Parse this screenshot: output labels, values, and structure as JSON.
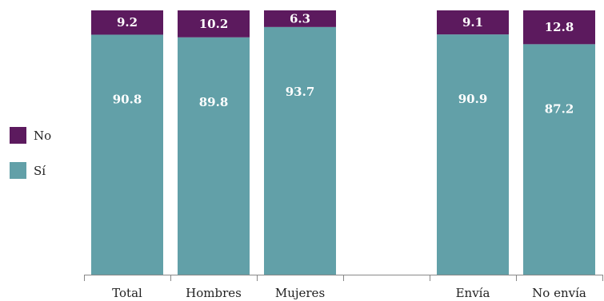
{
  "chart_data": {
    "type": "bar",
    "stacked": true,
    "categories": [
      "Total",
      "Hombres",
      "Mujeres",
      "",
      "Envía",
      "No envía"
    ],
    "series": [
      {
        "name": "Sí",
        "color": "#62A0A8",
        "values": [
          90.8,
          89.8,
          93.7,
          null,
          90.9,
          87.2
        ]
      },
      {
        "name": "No",
        "color": "#5C1A5E",
        "values": [
          9.2,
          10.2,
          6.3,
          null,
          9.1,
          12.8
        ]
      }
    ],
    "ylim": [
      0,
      100
    ],
    "grid": false,
    "legend": "left"
  }
}
